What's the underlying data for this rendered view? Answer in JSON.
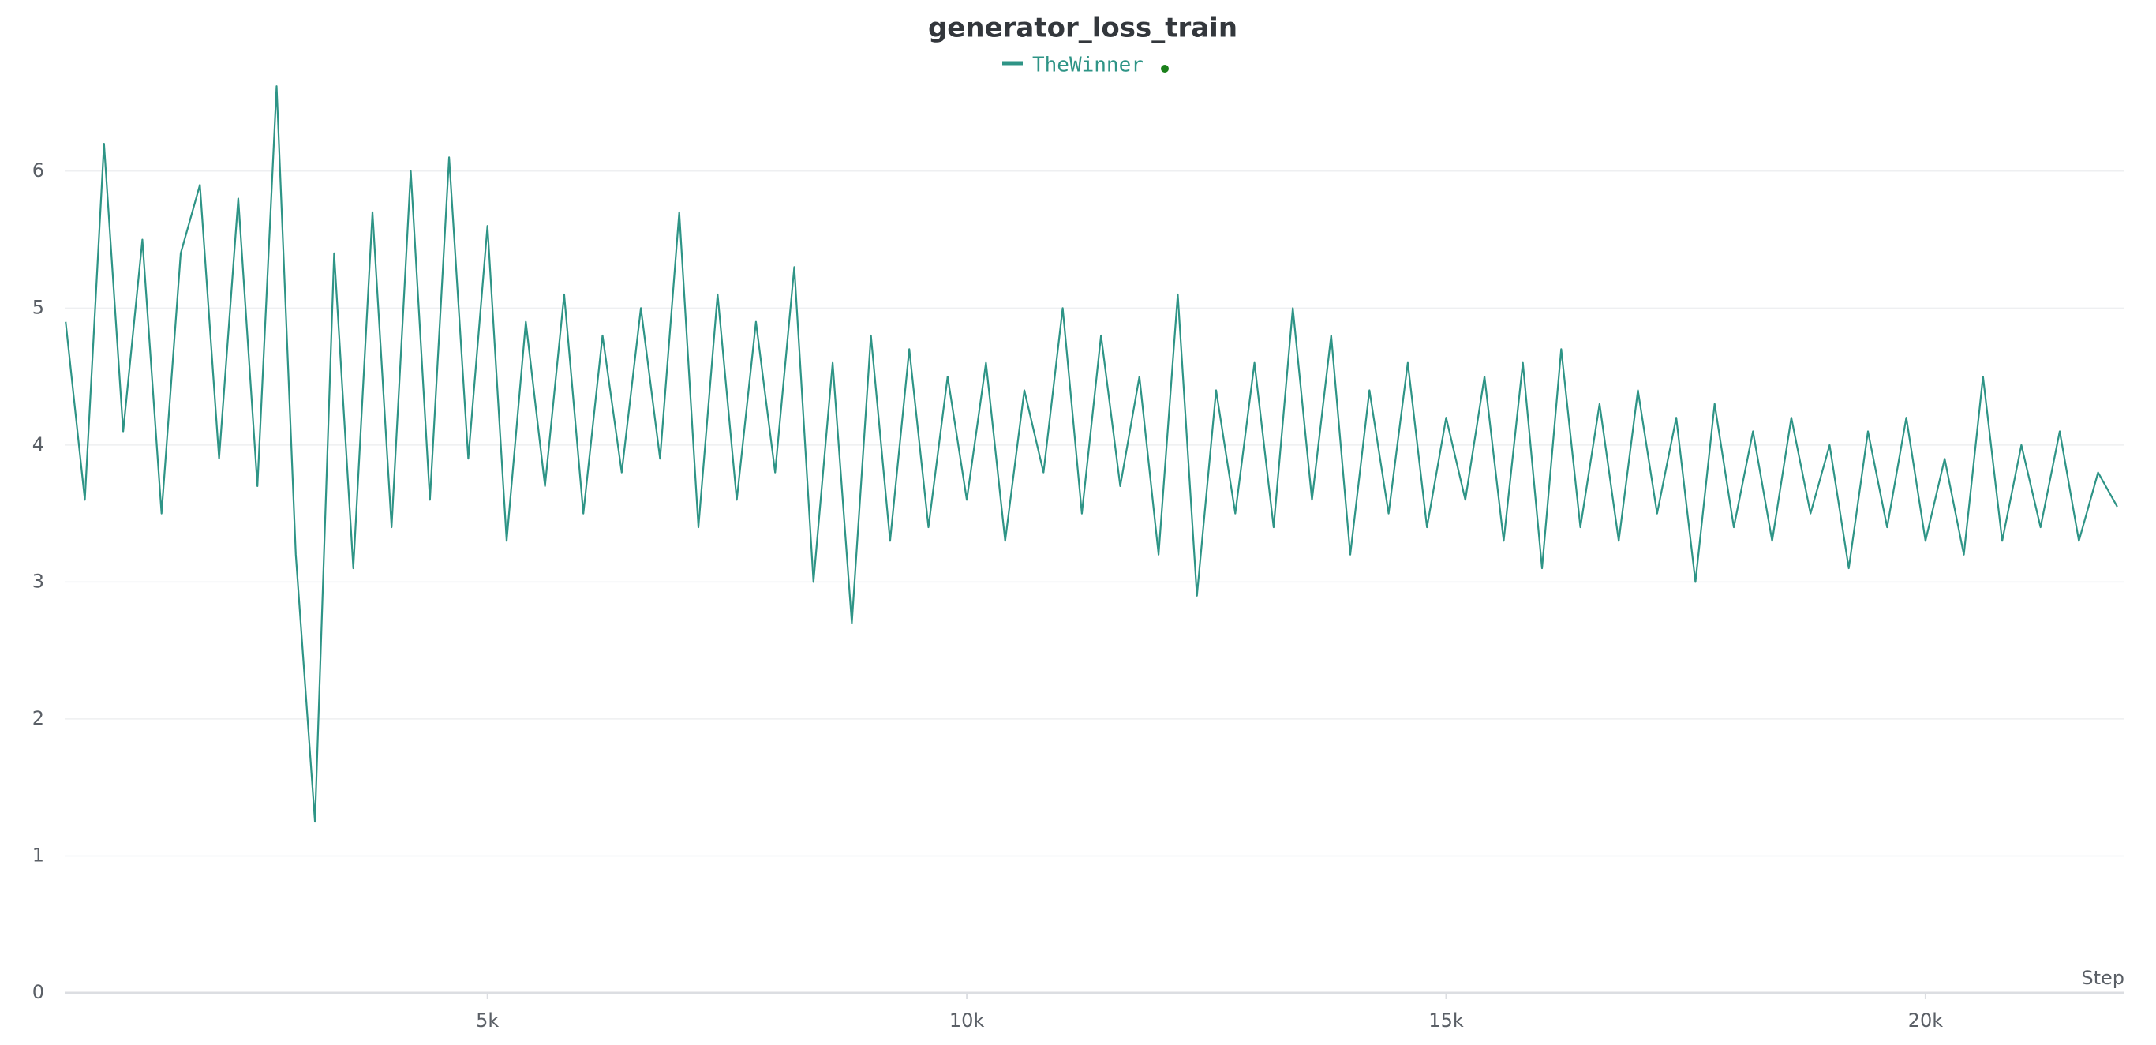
{
  "chart_data": {
    "type": "line",
    "title": "generator_loss_train",
    "x_label": "Step",
    "x": [
      600,
      800,
      1000,
      1200,
      1400,
      1600,
      1800,
      2000,
      2200,
      2400,
      2600,
      2800,
      3000,
      3200,
      3400,
      3600,
      3800,
      4000,
      4200,
      4400,
      4600,
      4800,
      5000,
      5200,
      5400,
      5600,
      5800,
      6000,
      6200,
      6400,
      6600,
      6800,
      7000,
      7200,
      7400,
      7600,
      7800,
      8000,
      8200,
      8400,
      8600,
      8800,
      9000,
      9200,
      9400,
      9600,
      9800,
      10000,
      10200,
      10400,
      10600,
      10800,
      11000,
      11200,
      11400,
      11600,
      11800,
      12000,
      12200,
      12400,
      12600,
      12800,
      13000,
      13200,
      13400,
      13600,
      13800,
      14000,
      14200,
      14400,
      14600,
      14800,
      15000,
      15200,
      15400,
      15600,
      15800,
      16000,
      16200,
      16400,
      16600,
      16800,
      17000,
      17200,
      17400,
      17600,
      17800,
      18000,
      18200,
      18400,
      18600,
      18800,
      19000,
      19200,
      19400,
      19600,
      19800,
      20000,
      20200,
      20400,
      20600,
      20800,
      21000,
      21200,
      21400,
      21600,
      21800,
      22000
    ],
    "series": [
      {
        "name": "TheWinner",
        "color": "#2e9486",
        "values": [
          4.9,
          3.6,
          6.2,
          4.1,
          5.5,
          3.5,
          5.4,
          5.9,
          3.9,
          5.8,
          3.7,
          6.62,
          3.2,
          1.25,
          5.4,
          3.1,
          5.7,
          3.4,
          6.0,
          3.6,
          6.1,
          3.9,
          5.6,
          3.3,
          4.9,
          3.7,
          5.1,
          3.5,
          4.8,
          3.8,
          5.0,
          3.9,
          5.7,
          3.4,
          5.1,
          3.6,
          4.9,
          3.8,
          5.3,
          3.0,
          4.6,
          2.7,
          4.8,
          3.3,
          4.7,
          3.4,
          4.5,
          3.6,
          4.6,
          3.3,
          4.4,
          3.8,
          5.0,
          3.5,
          4.8,
          3.7,
          4.5,
          3.2,
          5.1,
          2.9,
          4.4,
          3.5,
          4.6,
          3.4,
          5.0,
          3.6,
          4.8,
          3.2,
          4.4,
          3.5,
          4.6,
          3.4,
          4.2,
          3.6,
          4.5,
          3.3,
          4.6,
          3.1,
          4.7,
          3.4,
          4.3,
          3.3,
          4.4,
          3.5,
          4.2,
          3.0,
          4.3,
          3.4,
          4.1,
          3.3,
          4.2,
          3.5,
          4.0,
          3.1,
          4.1,
          3.4,
          4.2,
          3.3,
          3.9,
          3.2,
          4.5,
          3.3,
          4.0,
          3.4,
          4.1,
          3.3,
          3.8,
          3.55
        ]
      }
    ],
    "xlim": [
      590,
      22075
    ],
    "ylim": [
      0,
      6.65
    ],
    "xticks": [
      {
        "value": 5000,
        "label": "5k"
      },
      {
        "value": 10000,
        "label": "10k"
      },
      {
        "value": 15000,
        "label": "15k"
      },
      {
        "value": 20000,
        "label": "20k"
      }
    ],
    "yticks": [
      0,
      1,
      2,
      3,
      4,
      5,
      6
    ],
    "grid": true
  }
}
